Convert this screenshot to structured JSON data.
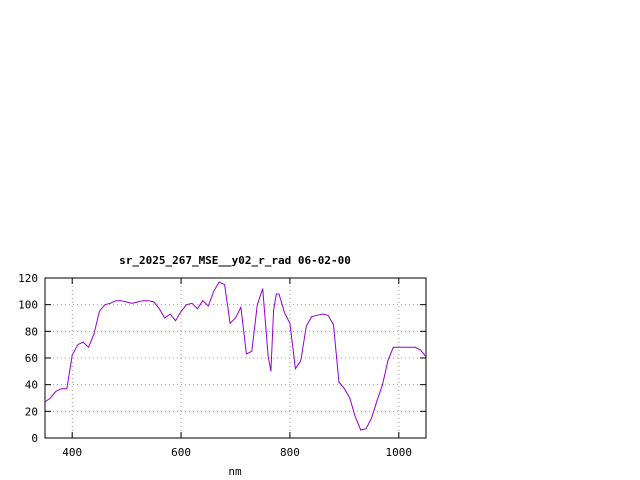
{
  "chart_data": {
    "type": "line",
    "title": "sr_2025_267_MSE__y02_r_rad 06-02-00",
    "xlabel": "nm",
    "ylabel": "",
    "xlim": [
      350,
      1050
    ],
    "ylim": [
      0,
      120
    ],
    "xticks": [
      400,
      600,
      800,
      1000
    ],
    "yticks": [
      0,
      20,
      40,
      60,
      80,
      100,
      120
    ],
    "grid": true,
    "line_color": "#9400d3",
    "series": [
      {
        "x": [
          350,
          360,
          370,
          380,
          390,
          400,
          410,
          420,
          430,
          440,
          450,
          460,
          470,
          480,
          490,
          500,
          510,
          520,
          530,
          540,
          550,
          560,
          570,
          580,
          590,
          600,
          610,
          620,
          630,
          640,
          650,
          660,
          670,
          680,
          690,
          700,
          710,
          720,
          730,
          740,
          750,
          760,
          765,
          770,
          775,
          780,
          790,
          800,
          810,
          820,
          830,
          840,
          850,
          860,
          870,
          880,
          890,
          900,
          910,
          920,
          930,
          940,
          950,
          960,
          970,
          980,
          990,
          1000,
          1010,
          1020,
          1030,
          1040,
          1050
        ],
        "y": [
          27,
          30,
          35,
          37,
          37,
          62,
          70,
          72,
          68,
          78,
          95,
          100,
          101,
          103,
          103,
          102,
          101,
          102,
          103,
          103,
          102,
          97,
          90,
          93,
          88,
          95,
          100,
          101,
          97,
          103,
          99,
          110,
          117,
          115,
          86,
          90,
          98,
          63,
          65,
          100,
          112,
          61,
          50,
          96,
          108,
          108,
          94,
          86,
          52,
          58,
          84,
          91,
          92,
          93,
          92,
          85,
          42,
          37,
          30,
          16,
          6,
          7,
          15,
          28,
          40,
          58,
          68,
          68,
          68,
          68,
          68,
          66,
          61
        ]
      }
    ]
  }
}
